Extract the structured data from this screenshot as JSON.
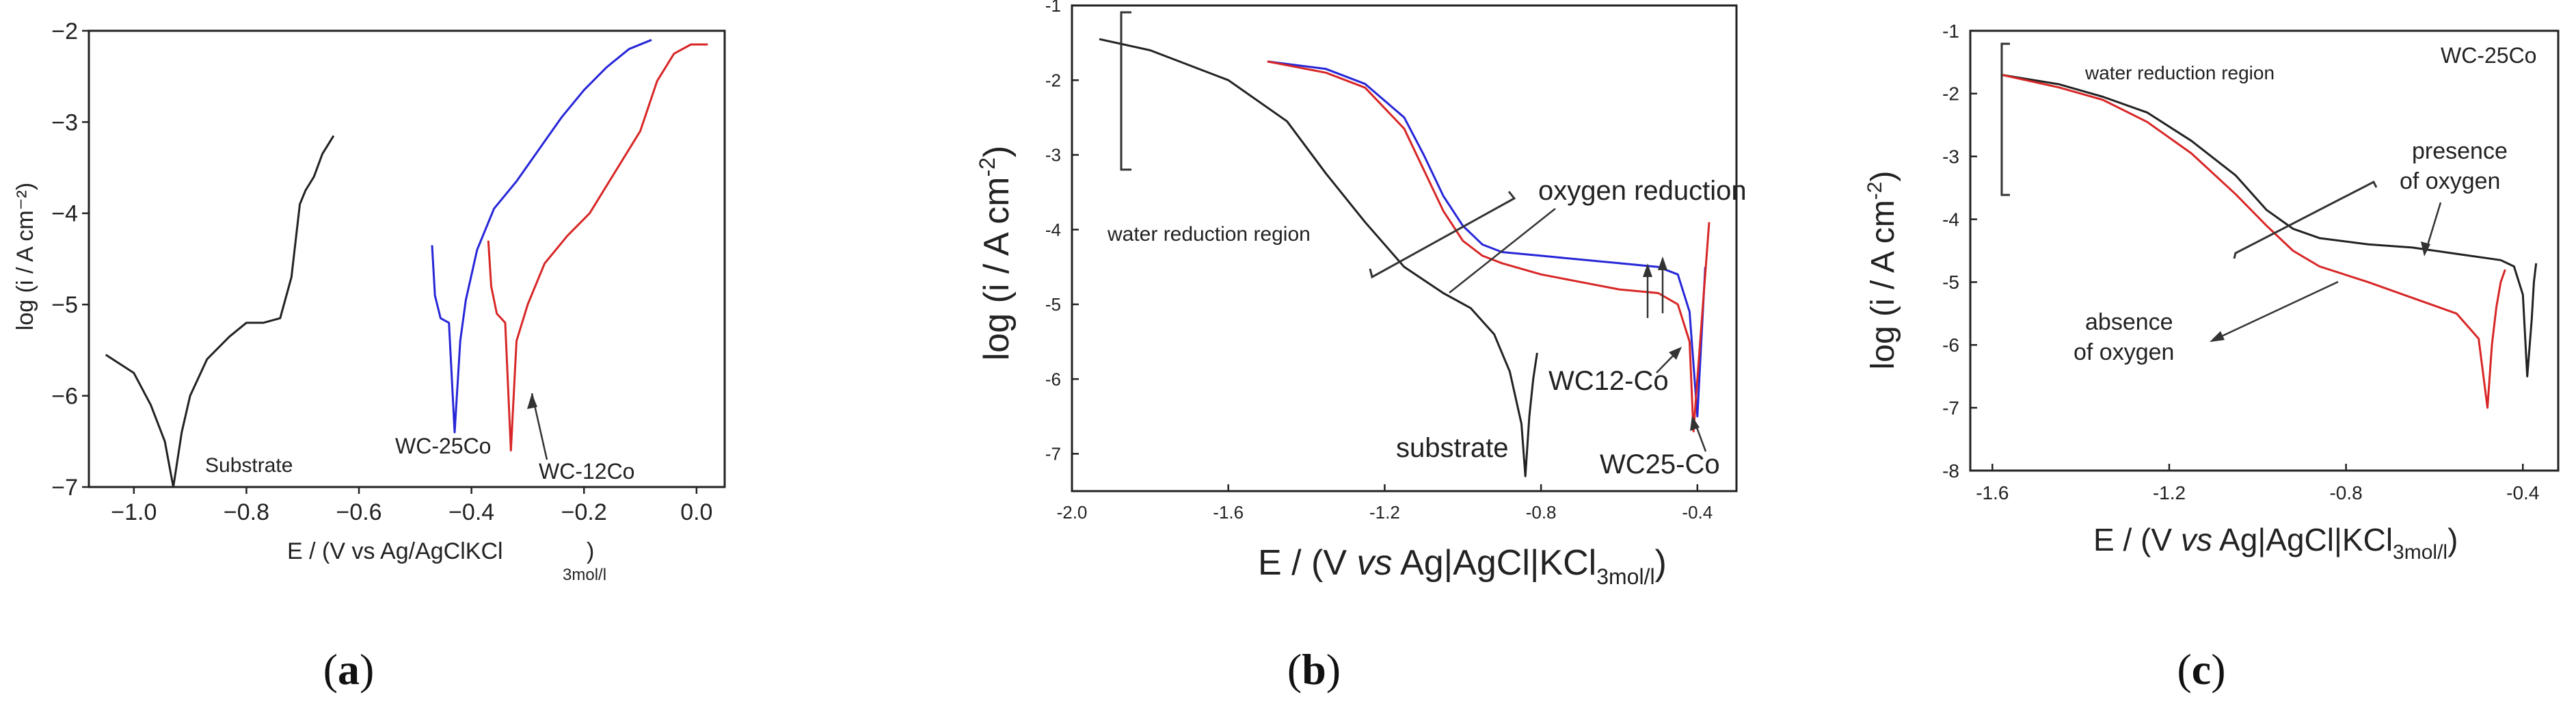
{
  "colors": {
    "substrate": "#222222",
    "wc25": "#2626d8",
    "wc12": "#d82626",
    "axis": "#222222",
    "annotation": "#333333"
  },
  "panels": {
    "a": {
      "caption_open": "(",
      "caption_letter": "a",
      "caption_close": ")",
      "ylabel": "log (i / A cm⁻²)",
      "xlabel": "E / (V vs Ag/AgClKCl",
      "xlabel_sub": "3mol/l",
      "xlabel_close": ")",
      "xticks": [
        "−1.0",
        "−0.8",
        "−0.6",
        "−0.4",
        "−0.2",
        "0.0"
      ],
      "yticks": [
        "−7",
        "−6",
        "−5",
        "−4",
        "−3",
        "−2"
      ],
      "labels": {
        "substrate": "Substrate",
        "wc25": "WC-25Co",
        "wc12": "WC-12Co"
      }
    },
    "b": {
      "caption_open": "(",
      "caption_letter": "b",
      "caption_close": ")",
      "ylabel": "log (i / A cm",
      "ylabel_sup": "-2",
      "ylabel_close": ")",
      "xlabel_pre": "E / (V ",
      "xlabel_vs": "vs",
      "xlabel_post": " Ag|AgCl|KCl",
      "xlabel_sub": "3mol/l",
      "xlabel_close": ")",
      "xticks": [
        "-2.0",
        "-1.6",
        "-1.2",
        "-0.8",
        "-0.4"
      ],
      "yticks": [
        "-7",
        "-6",
        "-5",
        "-4",
        "-3",
        "-2",
        "-1"
      ],
      "labels": {
        "water_reduction": "water reduction region",
        "oxygen_reduction": "oxygen reduction",
        "wc12": "WC12-Co",
        "substrate": "substrate",
        "wc25": "WC25-Co"
      }
    },
    "c": {
      "caption_open": "(",
      "caption_letter": "c",
      "caption_close": ")",
      "ylabel": "log (i / A cm",
      "ylabel_sup": "-2",
      "ylabel_close": ")",
      "xlabel_pre": "E / (V ",
      "xlabel_vs": "vs",
      "xlabel_post": " Ag|AgCl|KCl",
      "xlabel_sub": "3mol/l",
      "xlabel_close": ")",
      "xticks": [
        "-1.6",
        "-1.2",
        "-0.8",
        "-0.4"
      ],
      "yticks": [
        "-8",
        "-7",
        "-6",
        "-5",
        "-4",
        "-3",
        "-2",
        "-1"
      ],
      "labels": {
        "water_reduction": "water reduction region",
        "title": "WC-25Co",
        "presence1": "presence",
        "presence2": "of oxygen",
        "absence1": "absence",
        "absence2": "of  oxygen"
      }
    }
  },
  "chart_data": [
    {
      "type": "line",
      "title": "",
      "xlabel": "E / (V vs Ag/AgClKCl 3mol/l)",
      "ylabel": "log (i / A cm-2)",
      "xlim": [
        -1.08,
        0.05
      ],
      "ylim": [
        -7,
        -2
      ],
      "series": [
        {
          "name": "Substrate",
          "color": "#222222",
          "x": [
            -1.05,
            -1.0,
            -0.97,
            -0.945,
            -0.93,
            -0.915,
            -0.9,
            -0.87,
            -0.83,
            -0.8,
            -0.77,
            -0.74,
            -0.72,
            -0.705,
            -0.695,
            -0.68,
            -0.665,
            -0.645
          ],
          "y": [
            -5.55,
            -5.75,
            -6.1,
            -6.5,
            -7.0,
            -6.4,
            -6.0,
            -5.6,
            -5.35,
            -5.2,
            -5.2,
            -5.15,
            -4.7,
            -3.9,
            -3.75,
            -3.6,
            -3.35,
            -3.15
          ]
        },
        {
          "name": "WC-25Co",
          "color": "#2626d8",
          "x": [
            -0.47,
            -0.465,
            -0.455,
            -0.44,
            -0.43,
            -0.42,
            -0.41,
            -0.39,
            -0.36,
            -0.32,
            -0.28,
            -0.24,
            -0.2,
            -0.16,
            -0.12,
            -0.08
          ],
          "y": [
            -4.35,
            -4.9,
            -5.15,
            -5.2,
            -6.4,
            -5.4,
            -4.95,
            -4.4,
            -3.95,
            -3.65,
            -3.3,
            -2.95,
            -2.65,
            -2.4,
            -2.2,
            -2.1
          ]
        },
        {
          "name": "WC-12Co",
          "color": "#d82626",
          "x": [
            -0.37,
            -0.365,
            -0.355,
            -0.34,
            -0.33,
            -0.32,
            -0.3,
            -0.27,
            -0.23,
            -0.19,
            -0.15,
            -0.1,
            -0.07,
            -0.04,
            -0.01,
            0.02
          ],
          "y": [
            -4.3,
            -4.8,
            -5.1,
            -5.2,
            -6.6,
            -5.4,
            -5.0,
            -4.55,
            -4.25,
            -4.0,
            -3.6,
            -3.1,
            -2.55,
            -2.25,
            -2.15,
            -2.15
          ]
        }
      ]
    },
    {
      "type": "line",
      "title": "",
      "xlabel": "E / (V vs Ag|AgCl|KCl 3mol/l)",
      "ylabel": "log (i / A cm-2)",
      "xlim": [
        -2.0,
        -0.3
      ],
      "ylim": [
        -7.5,
        -1
      ],
      "series": [
        {
          "name": "substrate",
          "color": "#222222",
          "x": [
            -1.93,
            -1.8,
            -1.6,
            -1.45,
            -1.35,
            -1.25,
            -1.15,
            -1.05,
            -0.98,
            -0.92,
            -0.88,
            -0.85,
            -0.84,
            -0.83,
            -0.82,
            -0.81
          ],
          "y": [
            -1.45,
            -1.6,
            -2.0,
            -2.55,
            -3.25,
            -3.9,
            -4.5,
            -4.85,
            -5.05,
            -5.4,
            -5.9,
            -6.6,
            -7.3,
            -6.5,
            -6.0,
            -5.65
          ]
        },
        {
          "name": "WC25-Co",
          "color": "#2626d8",
          "x": [
            -1.5,
            -1.35,
            -1.25,
            -1.15,
            -1.1,
            -1.05,
            -1.0,
            -0.95,
            -0.9,
            -0.8,
            -0.7,
            -0.6,
            -0.5,
            -0.45,
            -0.42,
            -0.4,
            -0.39,
            -0.38
          ],
          "y": [
            -1.75,
            -1.85,
            -2.05,
            -2.5,
            -3.0,
            -3.55,
            -3.95,
            -4.2,
            -4.3,
            -4.35,
            -4.4,
            -4.45,
            -4.5,
            -4.6,
            -5.1,
            -6.5,
            -5.5,
            -4.5
          ]
        },
        {
          "name": "WC12-Co",
          "color": "#d82626",
          "x": [
            -1.5,
            -1.35,
            -1.25,
            -1.15,
            -1.1,
            -1.05,
            -1.0,
            -0.95,
            -0.9,
            -0.8,
            -0.7,
            -0.6,
            -0.5,
            -0.45,
            -0.42,
            -0.41,
            -0.4,
            -0.39,
            -0.38,
            -0.37
          ],
          "y": [
            -1.75,
            -1.9,
            -2.1,
            -2.65,
            -3.2,
            -3.75,
            -4.15,
            -4.35,
            -4.45,
            -4.6,
            -4.7,
            -4.8,
            -4.85,
            -5.0,
            -5.5,
            -6.7,
            -6.0,
            -5.3,
            -4.6,
            -3.9
          ]
        }
      ]
    },
    {
      "type": "line",
      "title": "WC-25Co",
      "xlabel": "E / (V vs Ag|AgCl|KCl 3mol/l)",
      "ylabel": "log (i / A cm-2)",
      "xlim": [
        -1.65,
        -0.32
      ],
      "ylim": [
        -8,
        -1
      ],
      "series": [
        {
          "name": "presence of oxygen",
          "color": "#222222",
          "x": [
            -1.58,
            -1.45,
            -1.35,
            -1.25,
            -1.15,
            -1.05,
            -0.98,
            -0.92,
            -0.86,
            -0.75,
            -0.65,
            -0.55,
            -0.45,
            -0.42,
            -0.4,
            -0.39,
            -0.38,
            -0.375,
            -0.37
          ],
          "y": [
            -1.7,
            -1.85,
            -2.05,
            -2.3,
            -2.75,
            -3.3,
            -3.85,
            -4.15,
            -4.3,
            -4.4,
            -4.45,
            -4.55,
            -4.65,
            -4.75,
            -5.2,
            -6.5,
            -5.6,
            -5.0,
            -4.7
          ]
        },
        {
          "name": "absence of oxygen",
          "color": "#d82626",
          "x": [
            -1.58,
            -1.45,
            -1.35,
            -1.25,
            -1.15,
            -1.05,
            -0.98,
            -0.92,
            -0.86,
            -0.75,
            -0.65,
            -0.55,
            -0.5,
            -0.48,
            -0.47,
            -0.46,
            -0.45,
            -0.44
          ],
          "y": [
            -1.7,
            -1.9,
            -2.1,
            -2.45,
            -2.95,
            -3.6,
            -4.1,
            -4.5,
            -4.75,
            -5.0,
            -5.25,
            -5.5,
            -5.9,
            -7.0,
            -6.0,
            -5.4,
            -5.0,
            -4.8
          ]
        }
      ]
    }
  ]
}
